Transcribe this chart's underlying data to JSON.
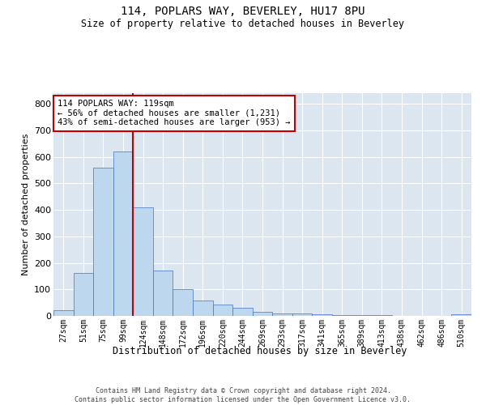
{
  "title": "114, POPLARS WAY, BEVERLEY, HU17 8PU",
  "subtitle": "Size of property relative to detached houses in Beverley",
  "xlabel": "Distribution of detached houses by size in Beverley",
  "ylabel": "Number of detached properties",
  "footer_line1": "Contains HM Land Registry data © Crown copyright and database right 2024.",
  "footer_line2": "Contains public sector information licensed under the Open Government Licence v3.0.",
  "annotation_line1": "114 POPLARS WAY: 119sqm",
  "annotation_line2": "← 56% of detached houses are smaller (1,231)",
  "annotation_line3": "43% of semi-detached houses are larger (953) →",
  "bar_color": "#bdd7ee",
  "bar_edge_color": "#4472c4",
  "ref_line_color": "#c00000",
  "background_color": "#dce6f1",
  "ylim": [
    0,
    840
  ],
  "yticks": [
    0,
    100,
    200,
    300,
    400,
    500,
    600,
    700,
    800
  ],
  "bin_labels": [
    "27sqm",
    "51sqm",
    "75sqm",
    "99sqm",
    "124sqm",
    "148sqm",
    "172sqm",
    "196sqm",
    "220sqm",
    "244sqm",
    "269sqm",
    "293sqm",
    "317sqm",
    "341sqm",
    "365sqm",
    "389sqm",
    "413sqm",
    "438sqm",
    "462sqm",
    "486sqm",
    "510sqm"
  ],
  "bar_heights": [
    20,
    162,
    560,
    619,
    410,
    170,
    102,
    57,
    43,
    32,
    15,
    9,
    8,
    6,
    3,
    3,
    2,
    1,
    0,
    0,
    7
  ],
  "ref_line_bin_index": 3,
  "n_bins": 21
}
